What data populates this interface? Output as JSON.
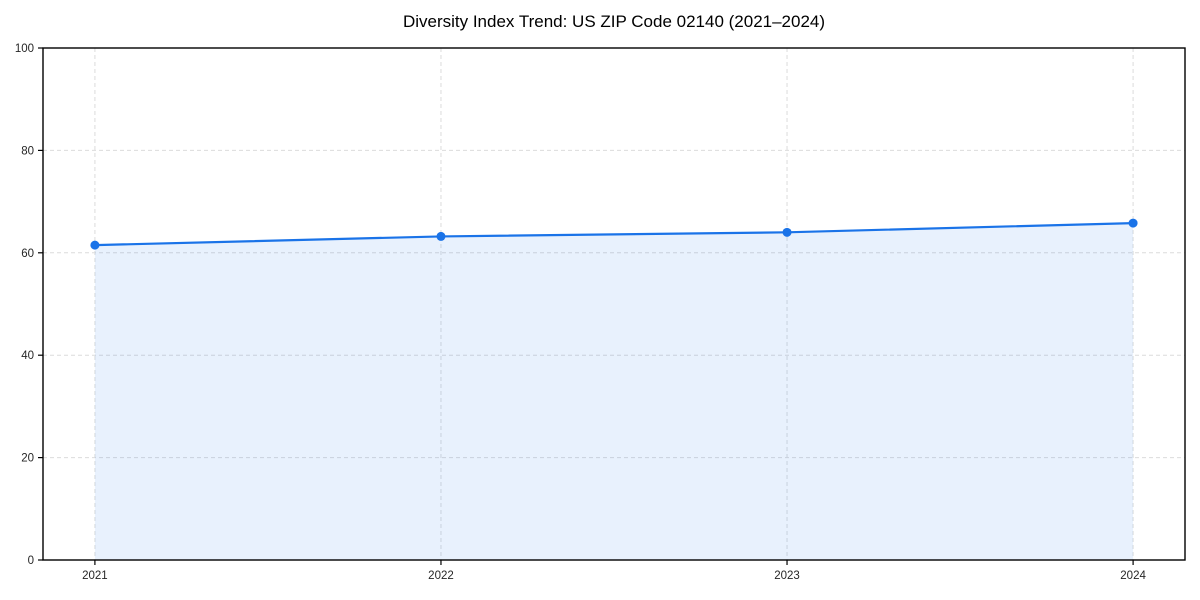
{
  "chart_data": {
    "type": "area",
    "title": "Diversity Index Trend: US ZIP Code 02140 (2021–2024)",
    "x": [
      2021,
      2022,
      2023,
      2024
    ],
    "series": [
      {
        "name": "Diversity Index",
        "values": [
          61.5,
          63.2,
          64.0,
          65.8
        ]
      }
    ],
    "xlabel": "",
    "ylabel": "",
    "ylim": [
      0,
      100
    ],
    "yticks": [
      0,
      20,
      40,
      60,
      80,
      100
    ],
    "grid": true,
    "grid_style": "dashed",
    "legend": false,
    "colors": {
      "line": "#1a73e8",
      "marker": "#1a73e8",
      "fill": "#1a73e8",
      "fill_opacity": 0.1,
      "grid": "#dcdcdc",
      "spine": "#000000",
      "tick_label": "#262626",
      "title": "#000000",
      "background": "#ffffff"
    }
  }
}
